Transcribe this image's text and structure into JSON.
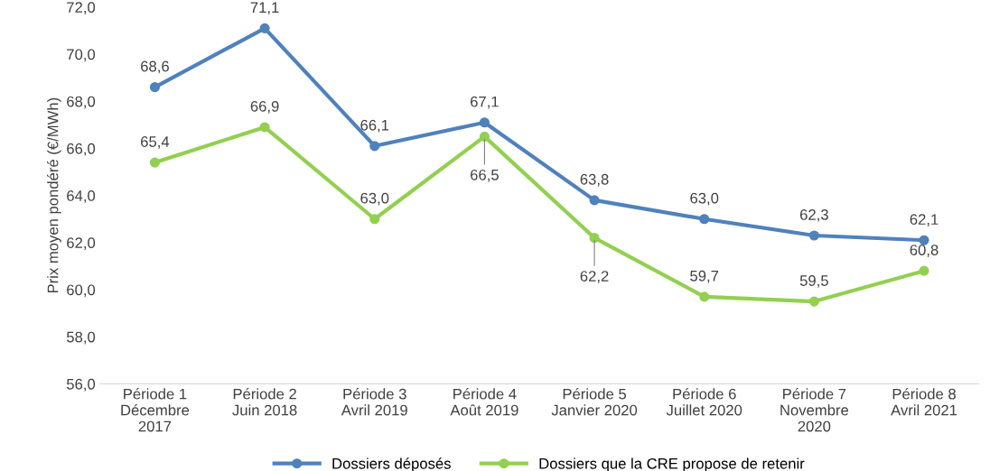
{
  "chart_data": {
    "type": "line",
    "ylabel": "Prix moyen pondéré (€/MWh)",
    "categories": [
      "Période 1\nDécembre\n2017",
      "Période 2\nJuin 2018",
      "Période 3\nAvril 2019",
      "Période 4\nAoût 2019",
      "Période 5\nJanvier 2020",
      "Période 6\nJuillet 2020",
      "Période 7\nNovembre\n2020",
      "Période 8\nAvril 2021"
    ],
    "series": [
      {
        "name": "Dossiers déposés",
        "color": "#4f81bd",
        "values": [
          68.6,
          71.1,
          66.1,
          67.1,
          63.8,
          63.0,
          62.3,
          62.1
        ],
        "value_labels": [
          "68,6",
          "71,1",
          "66,1",
          "67,1",
          "63,8",
          "63,0",
          "62,3",
          "62,1"
        ]
      },
      {
        "name": "Dossiers que la CRE propose de retenir",
        "color": "#92d050",
        "values": [
          65.4,
          66.9,
          63.0,
          66.5,
          62.2,
          59.7,
          59.5,
          60.8
        ],
        "value_labels": [
          "65,4",
          "66,9",
          "63,0",
          "66,5",
          "62,2",
          "59,7",
          "59,5",
          "60,8"
        ]
      }
    ],
    "ylim": [
      56,
      72
    ],
    "yticks": [
      {
        "value": 56,
        "label": "56,0"
      },
      {
        "value": 58,
        "label": "58,0"
      },
      {
        "value": 60,
        "label": "60,0"
      },
      {
        "value": 62,
        "label": "62,0"
      },
      {
        "value": 64,
        "label": "64,0"
      },
      {
        "value": 66,
        "label": "66,0"
      },
      {
        "value": 68,
        "label": "68,0"
      },
      {
        "value": 70,
        "label": "70,0"
      },
      {
        "value": 72,
        "label": "72,0"
      }
    ],
    "grid": false,
    "legend": "bottom",
    "marker": "circle",
    "line_style": "solid"
  }
}
